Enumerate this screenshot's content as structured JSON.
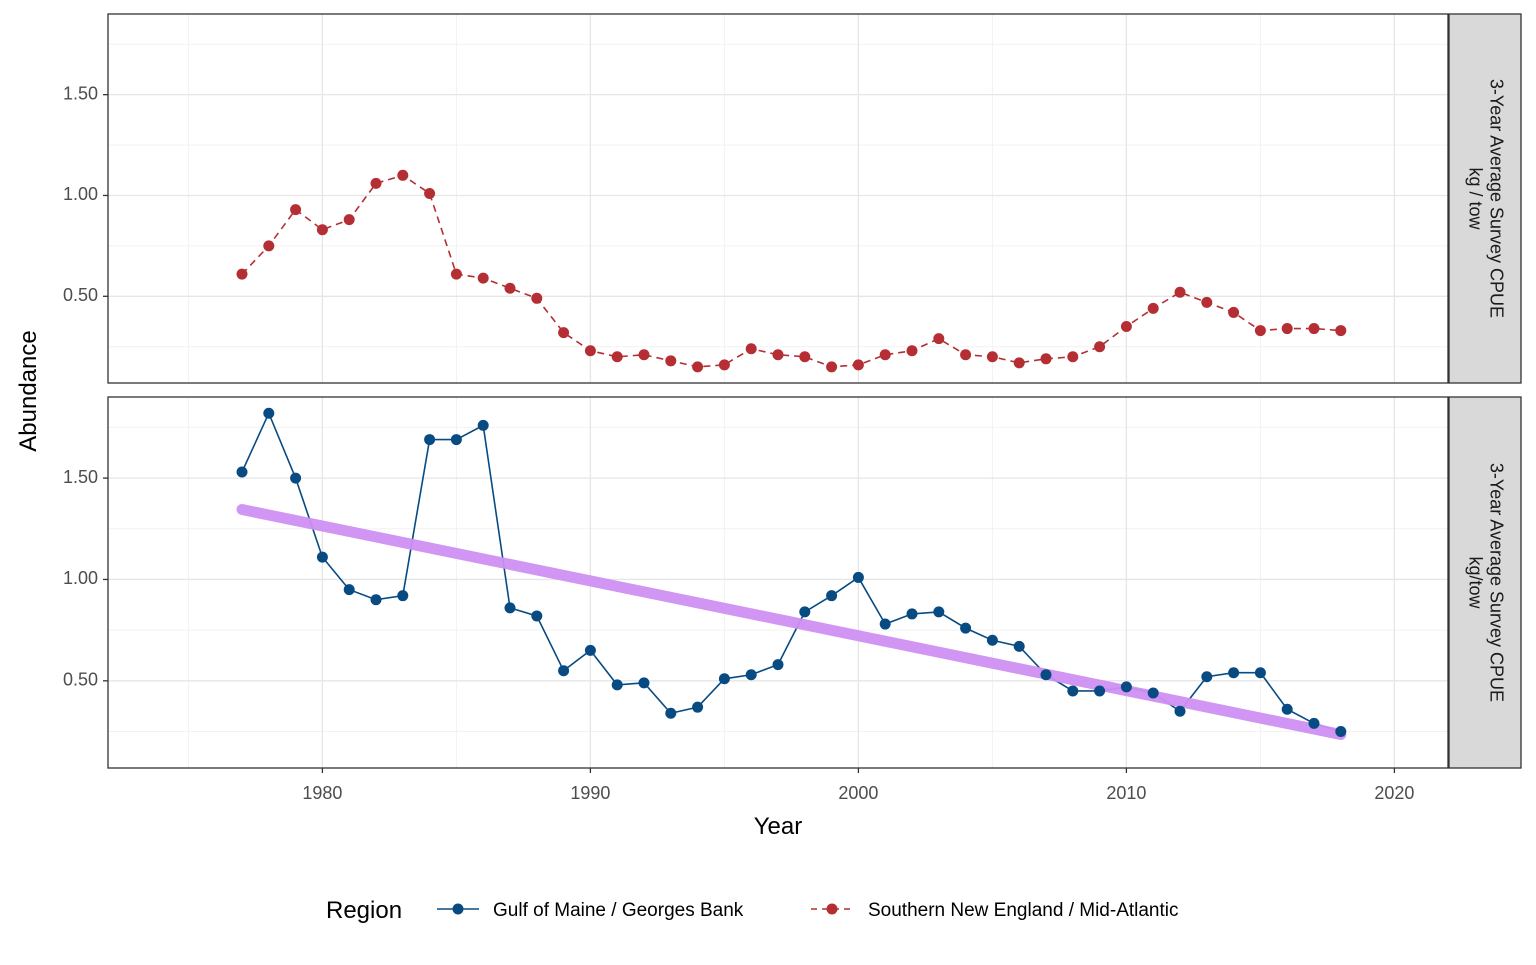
{
  "chart_data": {
    "type": "line",
    "xlabel": "Year",
    "ylabel": "Abundance",
    "xlim": [
      1972,
      2022
    ],
    "ylim": [
      0.07,
      1.9
    ],
    "x_ticks": [
      1980,
      1990,
      2000,
      2010,
      2020
    ],
    "y_ticks": [
      0.5,
      1.0,
      1.5
    ],
    "y_tick_labels": [
      "0.50",
      "1.00",
      "1.50"
    ],
    "grid": true,
    "legend": {
      "title": "Region",
      "position": "bottom",
      "entries": [
        {
          "label": "Gulf of Maine / Georges Bank",
          "color": "#084b83",
          "linestyle": "solid"
        },
        {
          "label": "Southern New England / Mid-Atlantic",
          "color": "#b42e34",
          "linestyle": "dashed"
        }
      ]
    },
    "panels": [
      {
        "strip_line1": "3-Year Average Survey CPUE",
        "strip_line2": "kg / tow",
        "series": [
          {
            "name": "Southern New England / Mid-Atlantic",
            "color": "#b42e34",
            "linestyle": "dashed",
            "x": [
              1977,
              1978,
              1979,
              1980,
              1981,
              1982,
              1983,
              1984,
              1985,
              1986,
              1987,
              1988,
              1989,
              1990,
              1991,
              1992,
              1993,
              1994,
              1995,
              1996,
              1997,
              1998,
              1999,
              2000,
              2001,
              2002,
              2003,
              2004,
              2005,
              2006,
              2007,
              2008,
              2009,
              2010,
              2011,
              2012,
              2013,
              2014,
              2015,
              2016,
              2017,
              2018
            ],
            "y": [
              0.61,
              0.75,
              0.93,
              0.83,
              0.88,
              1.06,
              1.1,
              1.01,
              0.61,
              0.59,
              0.54,
              0.49,
              0.32,
              0.23,
              0.2,
              0.21,
              0.18,
              0.15,
              0.16,
              0.24,
              0.21,
              0.2,
              0.15,
              0.16,
              0.21,
              0.23,
              0.29,
              0.21,
              0.2,
              0.17,
              0.19,
              0.2,
              0.25,
              0.35,
              0.44,
              0.52,
              0.47,
              0.42,
              0.33,
              0.34,
              0.34,
              0.33
            ]
          }
        ]
      },
      {
        "strip_line1": "3-Year Average Survey CPUE",
        "strip_line2": "kg/tow",
        "series": [
          {
            "name": "Gulf of Maine / Georges Bank",
            "color": "#084b83",
            "linestyle": "solid",
            "x": [
              1977,
              1978,
              1979,
              1980,
              1981,
              1982,
              1983,
              1984,
              1985,
              1986,
              1987,
              1988,
              1989,
              1990,
              1991,
              1992,
              1993,
              1994,
              1995,
              1996,
              1997,
              1998,
              1999,
              2000,
              2001,
              2002,
              2003,
              2004,
              2005,
              2006,
              2007,
              2008,
              2009,
              2010,
              2011,
              2012,
              2013,
              2014,
              2015,
              2016,
              2017,
              2018
            ],
            "y": [
              1.53,
              1.82,
              1.5,
              1.11,
              0.95,
              0.9,
              0.92,
              1.69,
              1.69,
              1.76,
              0.86,
              0.82,
              0.55,
              0.65,
              0.48,
              0.49,
              0.34,
              0.37,
              0.51,
              0.53,
              0.58,
              0.84,
              0.92,
              1.01,
              0.78,
              0.83,
              0.84,
              0.76,
              0.7,
              0.67,
              0.53,
              0.45,
              0.45,
              0.47,
              0.44,
              0.35,
              0.52,
              0.54,
              0.54,
              0.36,
              0.29,
              0.25
            ]
          }
        ],
        "trend": {
          "color": "#cf8ff2",
          "x": [
            1977,
            2018
          ],
          "y": [
            1.345,
            0.235
          ]
        }
      }
    ]
  }
}
